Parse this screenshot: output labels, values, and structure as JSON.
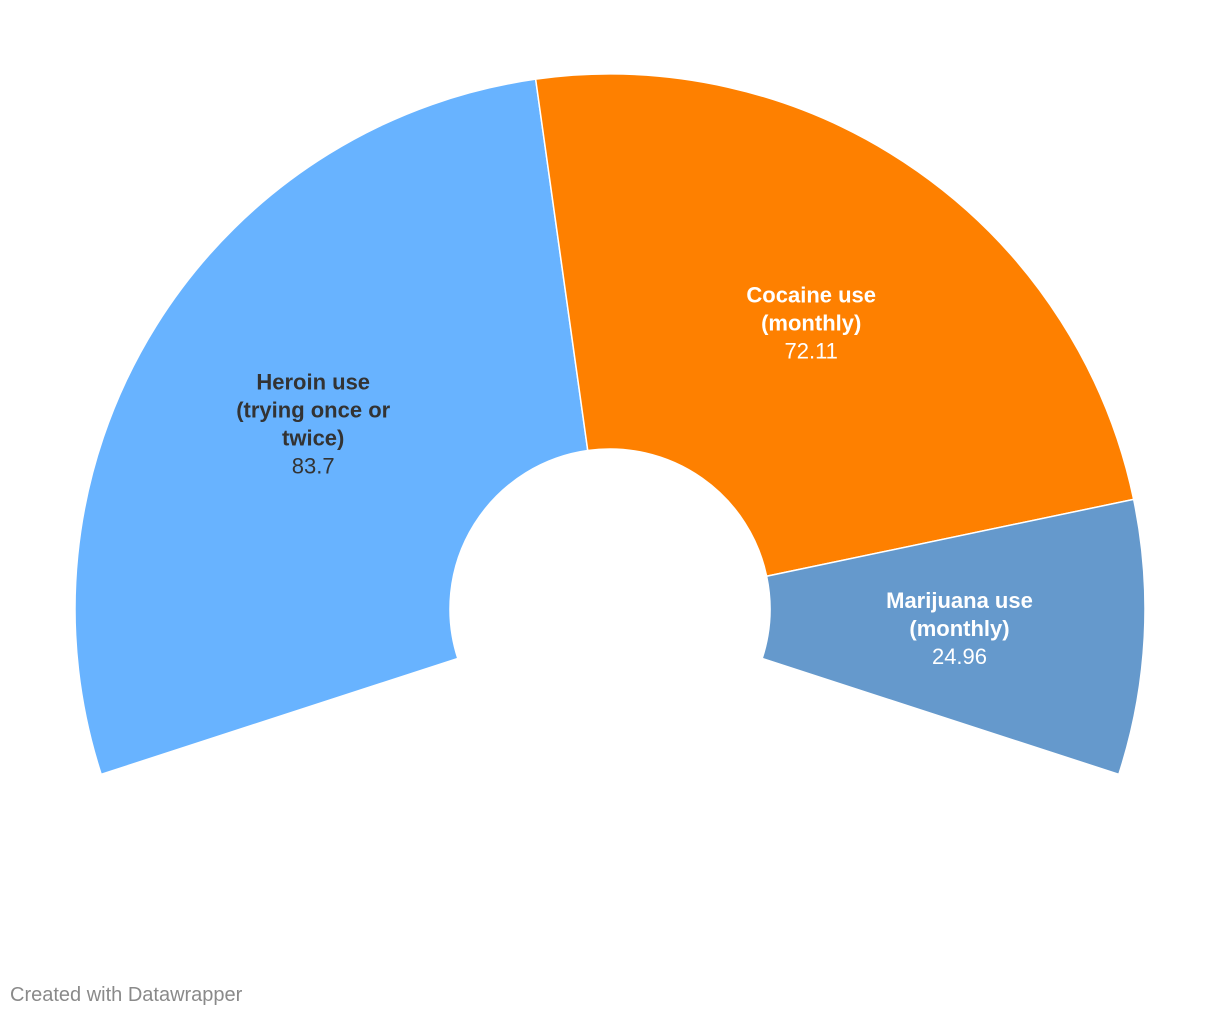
{
  "chart_data": {
    "type": "pie",
    "variant": "donut-arc",
    "slices": [
      {
        "label_lines": [
          "Heroin use",
          "(trying once or",
          "twice)"
        ],
        "value": 83.7,
        "value_label": "83.7",
        "color": "#68b3ff",
        "text_color": "#333333"
      },
      {
        "label_lines": [
          "Cocaine use",
          "(monthly)"
        ],
        "value": 72.11,
        "value_label": "72.11",
        "color": "#fe8000",
        "text_color": "#ffffff"
      },
      {
        "label_lines": [
          "Marijuana use",
          "(monthly)"
        ],
        "value": 24.96,
        "value_label": "24.96",
        "color": "#6599cc",
        "text_color": "#ffffff"
      }
    ]
  },
  "footer": {
    "credit": "Created with Datawrapper"
  }
}
